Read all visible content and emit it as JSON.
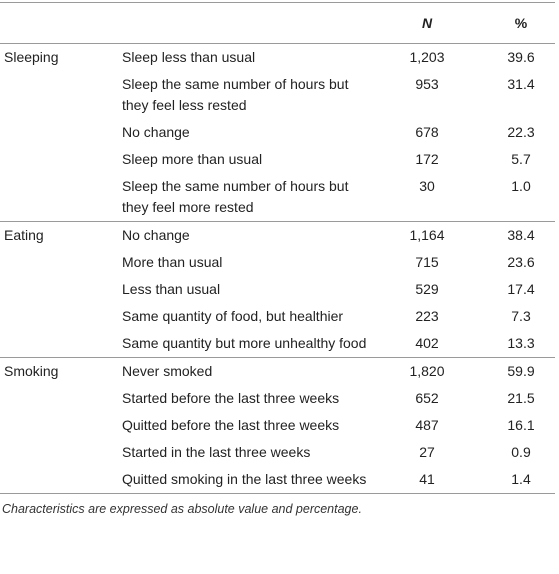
{
  "table": {
    "header": {
      "n": "N",
      "pct": "%"
    },
    "groups": [
      {
        "label": "Sleeping",
        "rows": [
          {
            "item": "Sleep less than usual",
            "n": "1,203",
            "pct": "39.6"
          },
          {
            "item": "Sleep the same number of hours but they feel less rested",
            "n": "953",
            "pct": "31.4"
          },
          {
            "item": "No change",
            "n": "678",
            "pct": "22.3"
          },
          {
            "item": "Sleep more than usual",
            "n": "172",
            "pct": "5.7"
          },
          {
            "item": "Sleep the same number of hours but they feel more rested",
            "n": "30",
            "pct": "1.0"
          }
        ]
      },
      {
        "label": "Eating",
        "rows": [
          {
            "item": "No change",
            "n": "1,164",
            "pct": "38.4"
          },
          {
            "item": "More than usual",
            "n": "715",
            "pct": "23.6"
          },
          {
            "item": "Less than usual",
            "n": "529",
            "pct": "17.4"
          },
          {
            "item": "Same quantity of food, but healthier",
            "n": "223",
            "pct": "7.3"
          },
          {
            "item": "Same quantity but more unhealthy food",
            "n": "402",
            "pct": "13.3"
          }
        ]
      },
      {
        "label": "Smoking",
        "rows": [
          {
            "item": "Never smoked",
            "n": "1,820",
            "pct": "59.9"
          },
          {
            "item": "Started before the last three weeks",
            "n": "652",
            "pct": "21.5"
          },
          {
            "item": "Quitted before the last three weeks",
            "n": "487",
            "pct": "16.1"
          },
          {
            "item": "Started in the last three weeks",
            "n": "27",
            "pct": "0.9"
          },
          {
            "item": "Quitted smoking in the last three weeks",
            "n": "41",
            "pct": "1.4"
          }
        ]
      }
    ]
  },
  "footnote": "Characteristics are expressed as absolute value and percentage."
}
